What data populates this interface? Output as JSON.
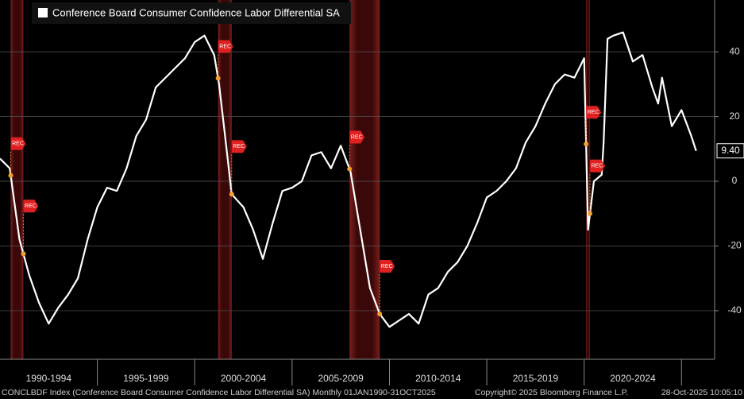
{
  "chart_data": {
    "type": "line",
    "series": [
      {
        "name": "Conference Board Consumer Confidence Labor Differential SA",
        "color": "#ffffff",
        "values": [
          7,
          4,
          -18,
          -29,
          -37.5,
          -44,
          -39,
          -35,
          -30,
          -18,
          -8,
          -2,
          -3,
          4,
          14,
          19,
          29,
          32,
          35,
          38,
          43,
          45,
          39,
          30,
          17,
          -4,
          -8,
          -15,
          -24,
          -13,
          -3,
          -2,
          0,
          8,
          9,
          4,
          11,
          3,
          -15,
          -33,
          -41,
          -45,
          -43,
          -41,
          -44,
          -35,
          -33,
          -28,
          -25,
          -20,
          -13,
          -5,
          -3,
          0,
          4,
          12,
          17,
          24,
          30,
          33,
          32,
          38,
          -15,
          0,
          2,
          12,
          44,
          45,
          46,
          37,
          39,
          29,
          24,
          32,
          17,
          22,
          14,
          9.4
        ]
      }
    ],
    "x": [
      1990,
      1990.5,
      1991,
      1991.5,
      1992,
      1992.5,
      1993,
      1993.5,
      1994,
      1994.5,
      1995,
      1995.5,
      1996,
      1996.5,
      1997,
      1997.5,
      1998,
      1998.5,
      1999,
      1999.5,
      2000,
      2000.5,
      2001,
      2001.25,
      2001.5,
      2001.9,
      2002.5,
      2003,
      2003.5,
      2004,
      2004.5,
      2005,
      2005.5,
      2006,
      2006.5,
      2007,
      2007.5,
      2008,
      2008.5,
      2009,
      2009.5,
      2010,
      2010.5,
      2011,
      2011.5,
      2012,
      2012.5,
      2013,
      2013.5,
      2014,
      2014.5,
      2015,
      2015.5,
      2016,
      2016.5,
      2017,
      2017.5,
      2018,
      2018.5,
      2019,
      2019.5,
      2020,
      2020.2,
      2020.5,
      2020.9,
      2021,
      2021.2,
      2021.5,
      2022,
      2022.5,
      2023,
      2023.5,
      2023.8,
      2024,
      2024.5,
      2025,
      2025.5,
      2025.75
    ],
    "last_value_label": "9.40",
    "recessions": [
      {
        "start": 1990.55,
        "end": 1991.2
      },
      {
        "start": 2001.2,
        "end": 2001.9
      },
      {
        "start": 2007.95,
        "end": 2009.5
      },
      {
        "start": 2020.1,
        "end": 2020.3
      }
    ],
    "recession_label": "REC",
    "xlim": [
      1990,
      2026.7
    ],
    "ylim": [
      -55,
      56
    ],
    "yticks": [
      -40,
      -20,
      0,
      20,
      40
    ],
    "xticks": [
      {
        "value": 1992.5,
        "label": "1990-1994"
      },
      {
        "value": 1997.5,
        "label": "1995-1999"
      },
      {
        "value": 2002.5,
        "label": "2000-2004"
      },
      {
        "value": 2007.5,
        "label": "2005-2009"
      },
      {
        "value": 2012.5,
        "label": "2010-2014"
      },
      {
        "value": 2017.5,
        "label": "2015-2019"
      },
      {
        "value": 2022.5,
        "label": "2020-2024"
      }
    ],
    "grid": true,
    "footer": "CONCLBDF Index (Conference Board Consumer Confidence Labor Differential SA) Monthly 01JAN1990-31OCT2025",
    "copyright": "Copyright© 2025 Bloomberg Finance L.P.",
    "timestamp": "28-Oct-2025 10:05:10"
  }
}
